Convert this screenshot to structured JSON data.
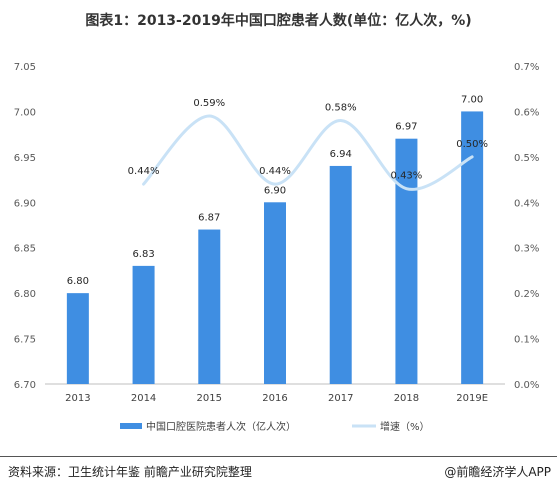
{
  "chart_data": {
    "type": "bar",
    "title": "图表1：2013-2019年中国口腔患者人数(单位：亿人次，%)",
    "categories": [
      "2013",
      "2014",
      "2015",
      "2016",
      "2017",
      "2018",
      "2019E"
    ],
    "series": [
      {
        "name": "中国口腔医院患者人次（亿人次）",
        "type": "bar",
        "axis": "left",
        "color": "#3f8ee2",
        "values": [
          6.8,
          6.83,
          6.87,
          6.9,
          6.94,
          6.97,
          7.0
        ],
        "labels": [
          "6.80",
          "6.83",
          "6.87",
          "6.90",
          "6.94",
          "6.97",
          "7.00"
        ]
      },
      {
        "name": "增速（%）",
        "type": "line",
        "axis": "right",
        "color": "#c9e2f6",
        "values": [
          null,
          0.44,
          0.59,
          0.44,
          0.58,
          0.43,
          0.5
        ],
        "labels": [
          "",
          "0.44%",
          "0.59%",
          "0.44%",
          "0.58%",
          "0.43%",
          "0.50%"
        ]
      }
    ],
    "y_left": {
      "min": 6.7,
      "max": 7.05,
      "ticks": [
        "6.70",
        "6.75",
        "6.80",
        "6.85",
        "6.90",
        "6.95",
        "7.00",
        "7.05"
      ]
    },
    "y_right": {
      "min": 0.0,
      "max": 0.7,
      "ticks": [
        "0.0%",
        "0.1%",
        "0.2%",
        "0.3%",
        "0.4%",
        "0.5%",
        "0.6%",
        "0.7%"
      ]
    },
    "grid": false,
    "legend_position": "bottom"
  },
  "footer": {
    "source": "资料来源：卫生统计年鉴 前瞻产业研究院整理",
    "credit": "@前瞻经济学人APP"
  }
}
